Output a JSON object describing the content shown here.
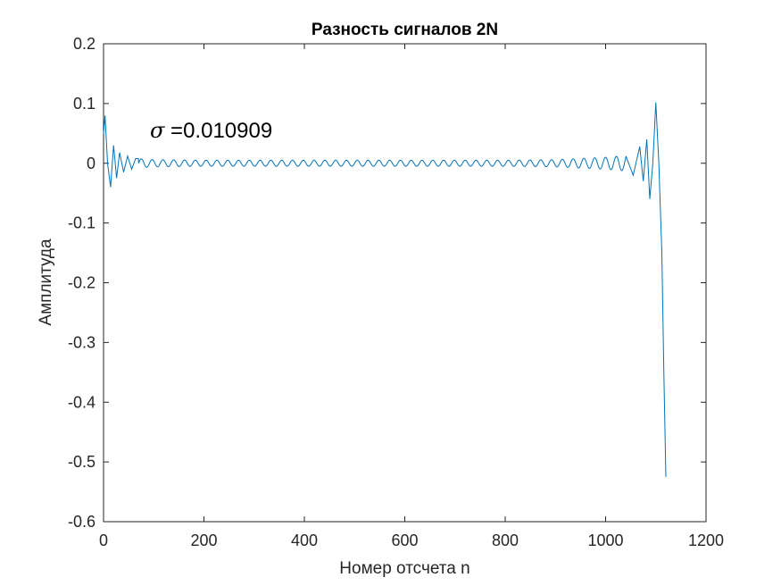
{
  "chart_data": {
    "type": "line",
    "title": "Разность сигналов 2N",
    "xlabel": "Номер отсчета n",
    "ylabel": "Амплитуда",
    "xlim": [
      0,
      1200
    ],
    "ylim": [
      -0.6,
      0.2
    ],
    "xticks": [
      0,
      200,
      400,
      600,
      800,
      1000,
      1200
    ],
    "xtick_labels": [
      "0",
      "200",
      "400",
      "600",
      "800",
      "1000",
      "1200"
    ],
    "yticks": [
      0.2,
      0.1,
      0,
      -0.1,
      -0.2,
      -0.3,
      -0.4,
      -0.5,
      -0.6
    ],
    "ytick_labels": [
      "0.2",
      "0.1",
      "0",
      "-0.1",
      "-0.2",
      "-0.3",
      "-0.4",
      "-0.5",
      "-0.6"
    ],
    "grid": false,
    "line_color": "#0072BD",
    "annotation": {
      "symbol": "σ",
      "text": " =0.010909"
    },
    "series": [
      {
        "values_description_x": [
          0,
          3,
          8,
          14,
          20,
          26,
          32,
          40,
          48,
          56,
          64,
          100,
          200,
          300,
          400,
          500,
          600,
          700,
          800,
          900,
          1000,
          1040,
          1055,
          1068,
          1075,
          1082,
          1088,
          1094,
          1100,
          1106,
          1112,
          1116,
          1120
        ],
        "values": [
          0.05,
          0.08,
          0.0,
          -0.04,
          0.03,
          -0.025,
          0.018,
          -0.015,
          0.012,
          -0.01,
          0.008,
          0.006,
          0.005,
          0.005,
          0.005,
          0.005,
          0.005,
          0.005,
          0.005,
          0.006,
          0.01,
          0.013,
          -0.02,
          0.028,
          -0.03,
          0.04,
          -0.06,
          0.0,
          0.102,
          0.0,
          -0.15,
          -0.35,
          -0.525
        ]
      }
    ]
  }
}
